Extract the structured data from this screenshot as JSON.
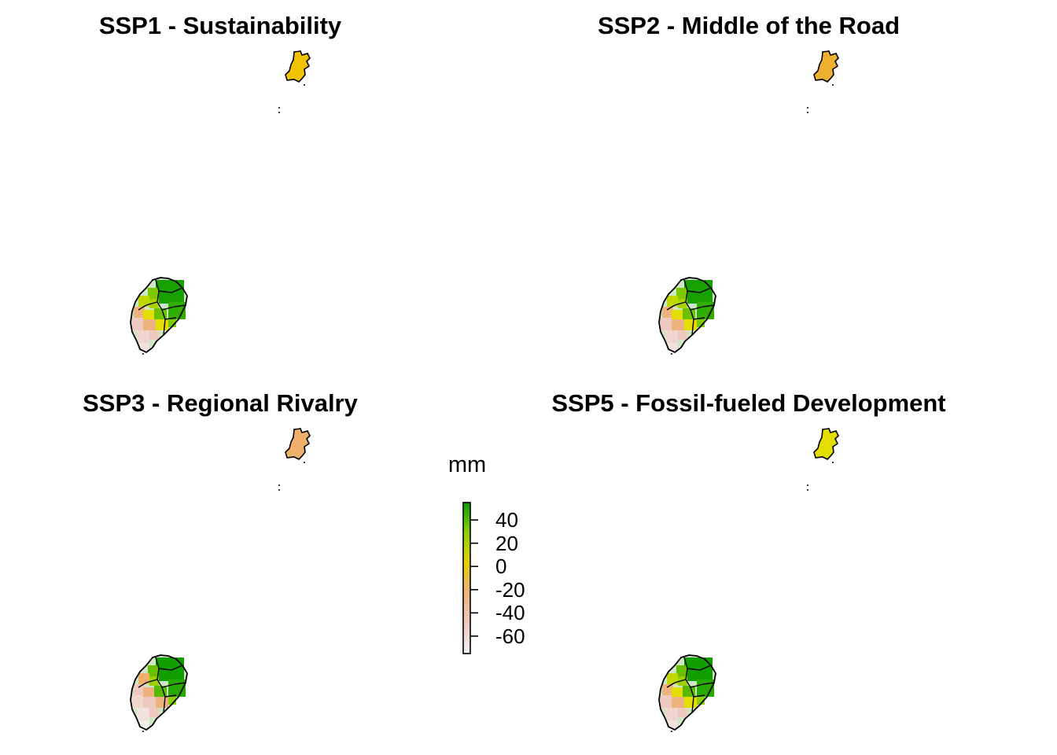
{
  "panels": [
    {
      "title": "SSP1 - Sustainability"
    },
    {
      "title": "SSP2 - Middle of the Road"
    },
    {
      "title": "SSP3 - Regional Rivalry"
    },
    {
      "title": "SSP5 - Fossil-fueled Development"
    }
  ],
  "legend": {
    "title": "mm",
    "ticks": [
      "40",
      "20",
      "0",
      "-20",
      "-40",
      "-60"
    ],
    "tick_values": [
      40,
      20,
      0,
      -20,
      -40,
      -60
    ],
    "range": [
      -75,
      55
    ],
    "palette": [
      "#f1f1f1",
      "#efc8c0",
      "#edb37f",
      "#e8d000",
      "#8dd000",
      "#0a9c00"
    ]
  },
  "map_colors": {
    "principe": [
      "#f2c300",
      "#edb030",
      "#eeb06a",
      "#e3dd00"
    ]
  }
}
